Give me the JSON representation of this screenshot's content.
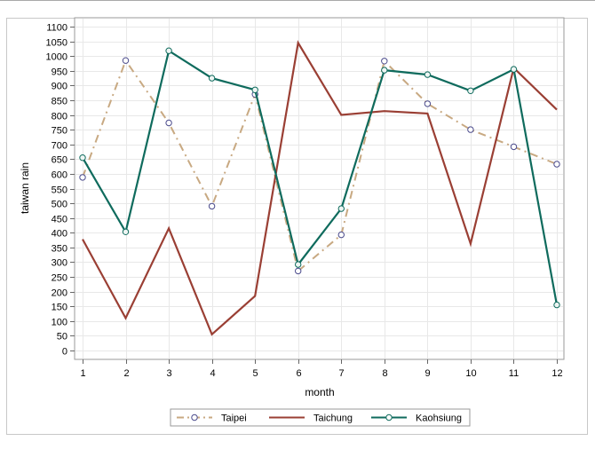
{
  "chart_data": {
    "type": "line",
    "xlabel": "month",
    "ylabel": "taiwan rain",
    "x": [
      1,
      2,
      3,
      4,
      5,
      6,
      7,
      8,
      9,
      10,
      11,
      12
    ],
    "xlim": [
      1,
      12
    ],
    "ylim": [
      0,
      1100
    ],
    "ytick_step": 50,
    "grid": true,
    "legend_position": "bottom-center",
    "series": [
      {
        "name": "Taipei",
        "style": "dash-dot",
        "markers": true,
        "color": "#c8a982",
        "values": [
          588,
          985,
          773,
          490,
          870,
          270,
          393,
          983,
          838,
          750,
          692,
          633
        ]
      },
      {
        "name": "Taichung",
        "style": "solid",
        "markers": false,
        "color": "#9a3f34",
        "values": [
          378,
          110,
          415,
          55,
          185,
          1045,
          800,
          813,
          805,
          363,
          960,
          818
        ]
      },
      {
        "name": "Kaohsiung",
        "style": "solid",
        "markers": true,
        "color": "#0f6b5d",
        "values": [
          655,
          403,
          1018,
          925,
          885,
          292,
          482,
          952,
          937,
          882,
          955,
          155
        ]
      }
    ],
    "marker_stroke_color": "#4b4b8c"
  }
}
